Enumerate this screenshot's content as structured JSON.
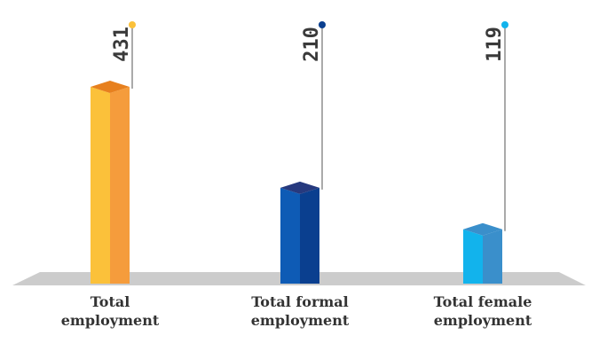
{
  "chart_data": {
    "type": "bar",
    "categories": [
      [
        "Total",
        "employment"
      ],
      [
        "Total formal",
        "employment"
      ],
      [
        "Total female",
        "employment"
      ]
    ],
    "values": [
      431,
      210,
      119
    ],
    "value_labels": [
      "431",
      "210",
      "119"
    ],
    "bar_colors": [
      {
        "front": "#FBC13A",
        "side": "#F59C3C",
        "top": "#E7801E"
      },
      {
        "front": "#0E5BB5",
        "side": "#0A3F8F",
        "top": "#26397E"
      },
      {
        "front": "#12B3EC",
        "side": "#3A8FCB",
        "top": "#3A8FCB"
      }
    ],
    "dot_colors": [
      "#FBC13A",
      "#0A3F8F",
      "#12B3EC"
    ],
    "floor_color": "#CCCCCC",
    "ylim": [
      0,
      431
    ],
    "title": "",
    "xlabel": "",
    "ylabel": ""
  }
}
